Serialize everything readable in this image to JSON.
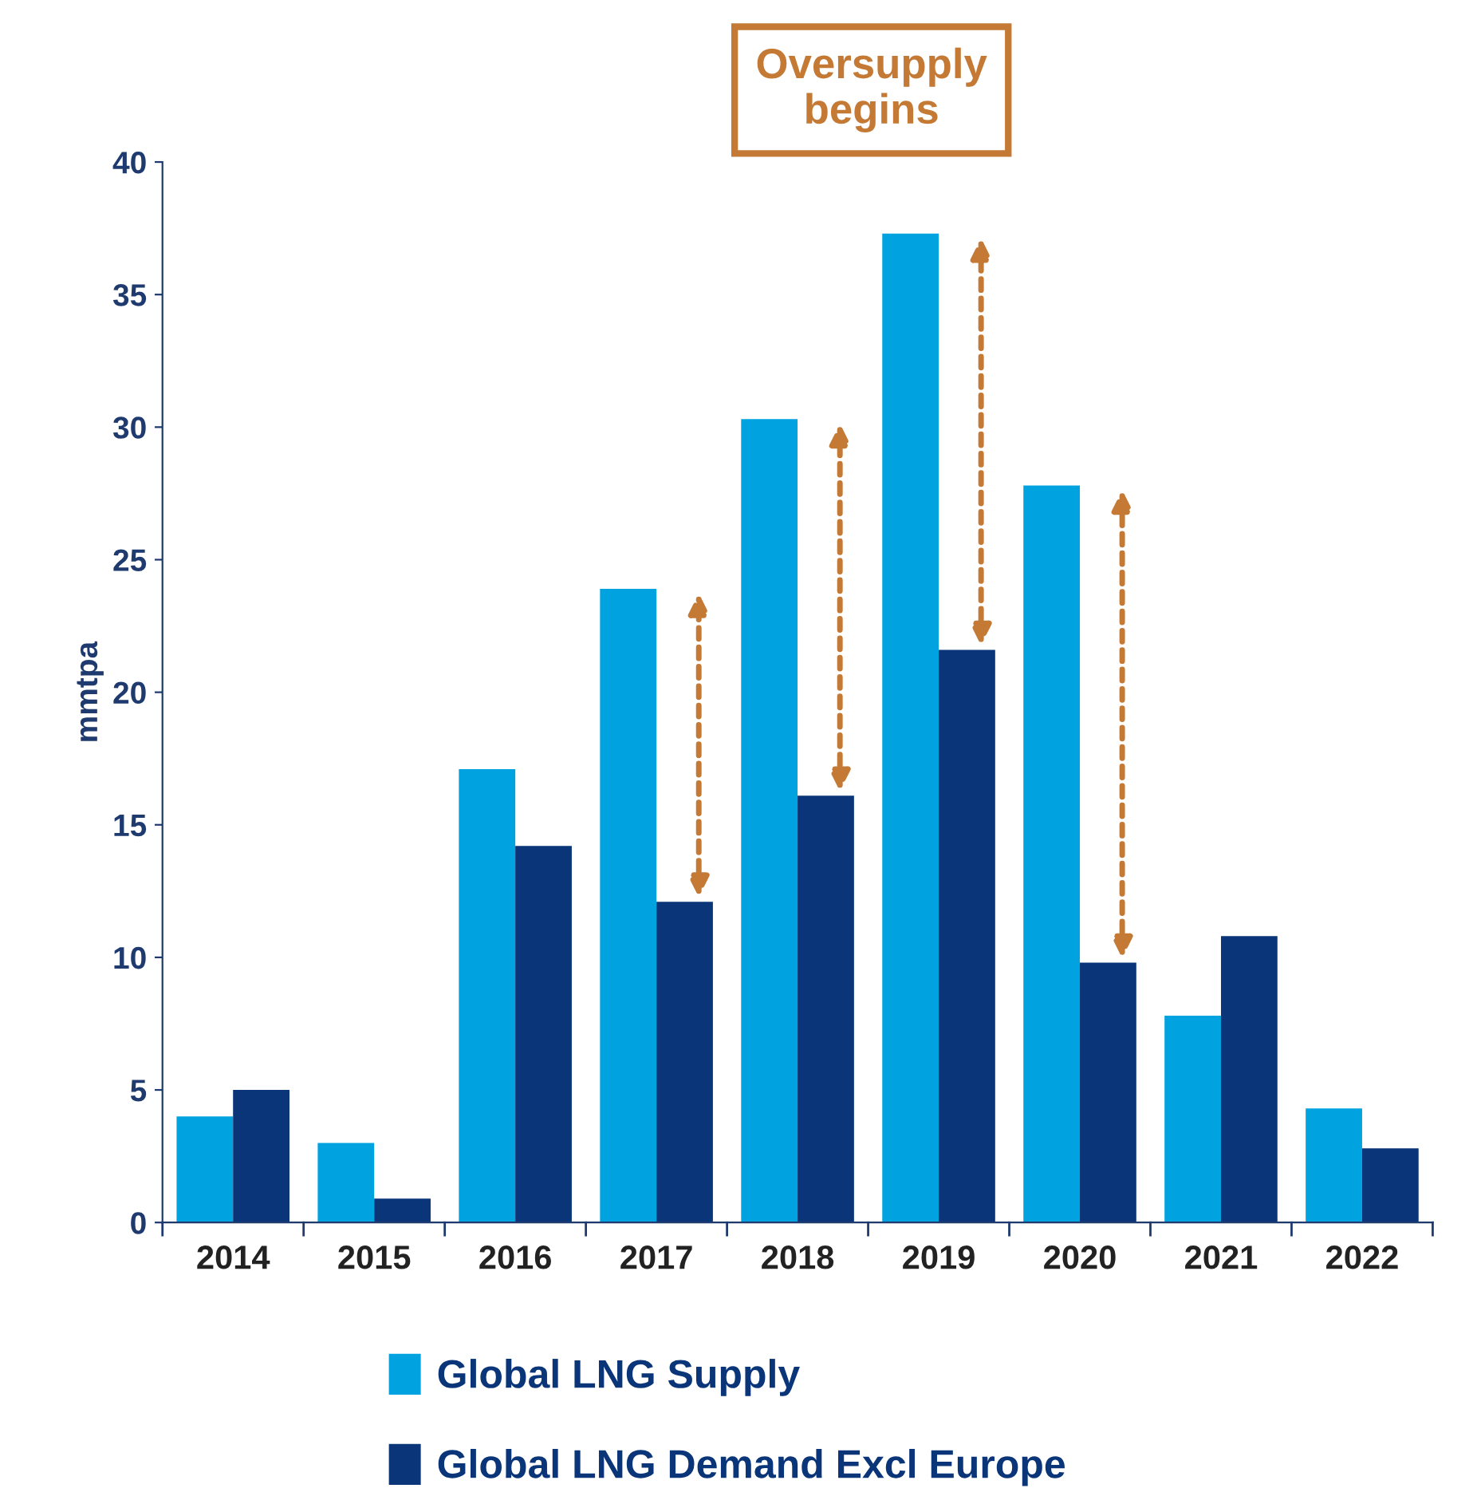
{
  "chart_data": {
    "type": "bar",
    "ylabel": "mmtpa",
    "categories": [
      "2014",
      "2015",
      "2016",
      "2017",
      "2018",
      "2019",
      "2020",
      "2021",
      "2022"
    ],
    "series": [
      {
        "name": "Global LNG Supply",
        "color": "#00a3e0",
        "values": [
          4.0,
          3.0,
          17.1,
          23.9,
          30.3,
          37.3,
          27.8,
          7.8,
          4.3
        ]
      },
      {
        "name": "Global LNG Demand Excl Europe",
        "color": "#0a3578",
        "values": [
          5.0,
          0.9,
          14.2,
          12.1,
          16.1,
          21.6,
          9.8,
          10.8,
          2.8
        ]
      }
    ],
    "ylim": [
      0,
      40
    ],
    "yticks": [
      0,
      5,
      10,
      15,
      20,
      25,
      30,
      35,
      40
    ],
    "annotations": [
      "Oversupply\nbegins"
    ],
    "legend": "bottom",
    "grid": false
  }
}
